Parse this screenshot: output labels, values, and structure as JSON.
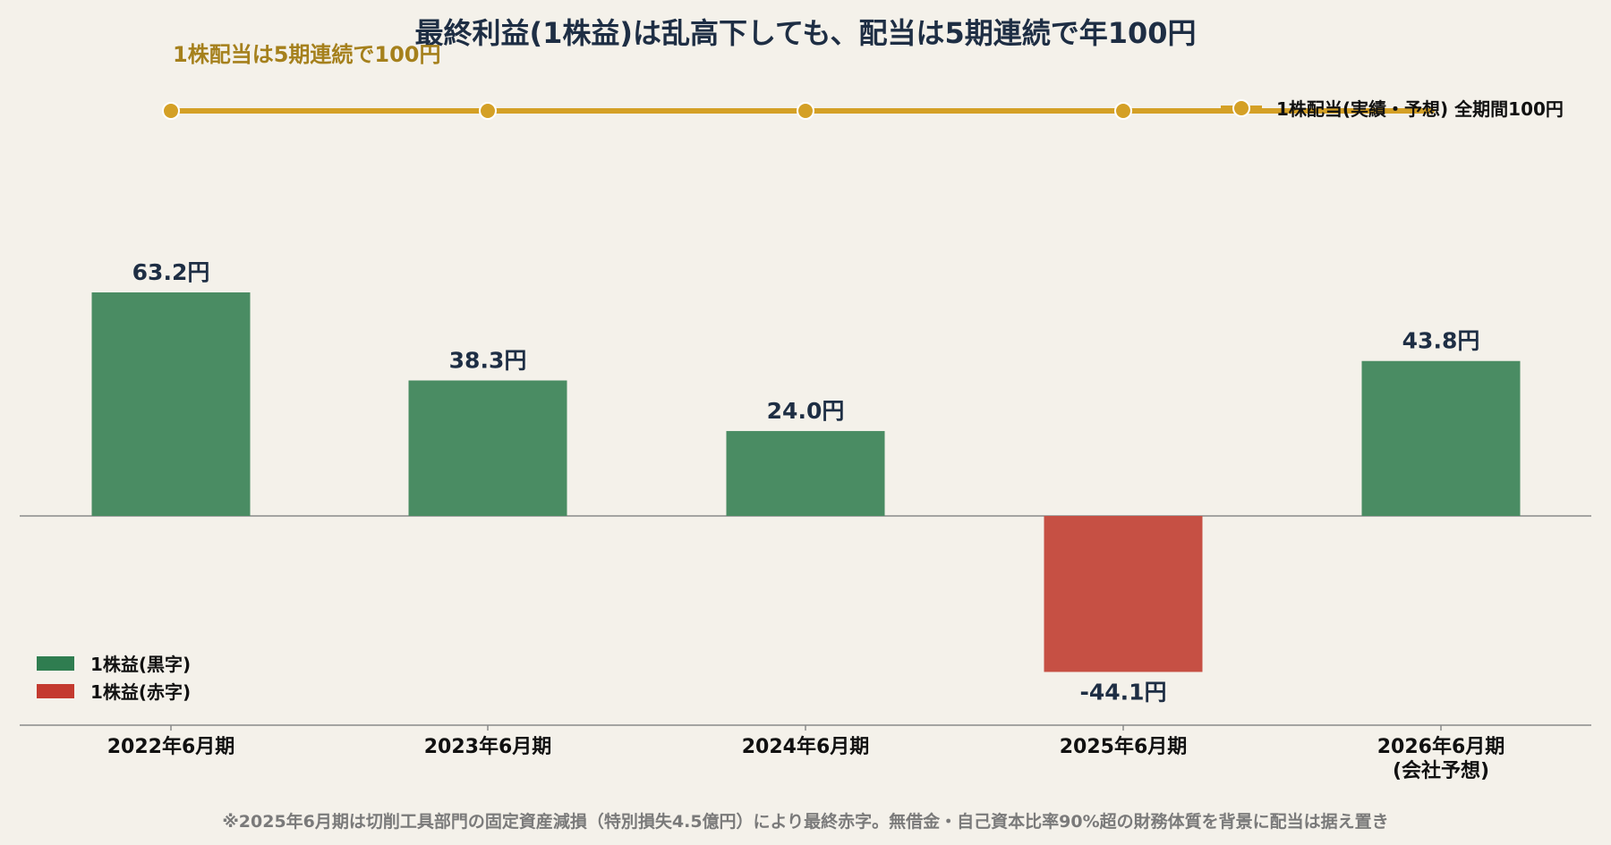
{
  "colors": {
    "background": "#f4f1ea",
    "profit": "#4a8c63",
    "loss": "#c65044",
    "legend_profit": "#2f7d50",
    "legend_loss": "#c43a2f",
    "dividend": "#d4a026",
    "dividend_annotation": "#a5801c",
    "title_text": "#1e2e44",
    "value_text": "#1e2e44",
    "axis_text": "#111111",
    "footnote_text": "#7a7a7a",
    "axis_line": "#8a8a8a"
  },
  "chart_data": {
    "type": "bar",
    "title": "最終利益(1株益)は乱高下しても、配当は5期連続で年100円",
    "categories": [
      [
        "2022年6月期"
      ],
      [
        "2023年6月期"
      ],
      [
        "2024年6月期"
      ],
      [
        "2025年6月期"
      ],
      [
        "2026年6月期",
        "(会社予想)"
      ]
    ],
    "series": [
      {
        "name": "1株益",
        "values": [
          63.2,
          38.3,
          24.0,
          -44.1,
          43.8
        ],
        "labels": [
          "63.2円",
          "38.3円",
          "24.0円",
          "-44.1円",
          "43.8円"
        ]
      },
      {
        "name": "1株配当(実績・予想) 全期間100円",
        "type": "line",
        "values": [
          100,
          100,
          100,
          100,
          100
        ]
      }
    ],
    "ylim": [
      -50,
      150
    ],
    "legend": [
      {
        "label": "1株益(黒字)",
        "color_key": "legend_profit"
      },
      {
        "label": "1株益(赤字)",
        "color_key": "legend_loss"
      }
    ],
    "dividend_annotation": "1株配当は5期連続で100円",
    "dividend_legend": "1株配当(実績・予想) 全期間100円",
    "footnote": "※2025年6月期は切削工具部門の固定資産減損（特別損失4.5億円）により最終赤字。無借金・自己資本比率90%超の財務体質を背景に配当は据え置き"
  }
}
